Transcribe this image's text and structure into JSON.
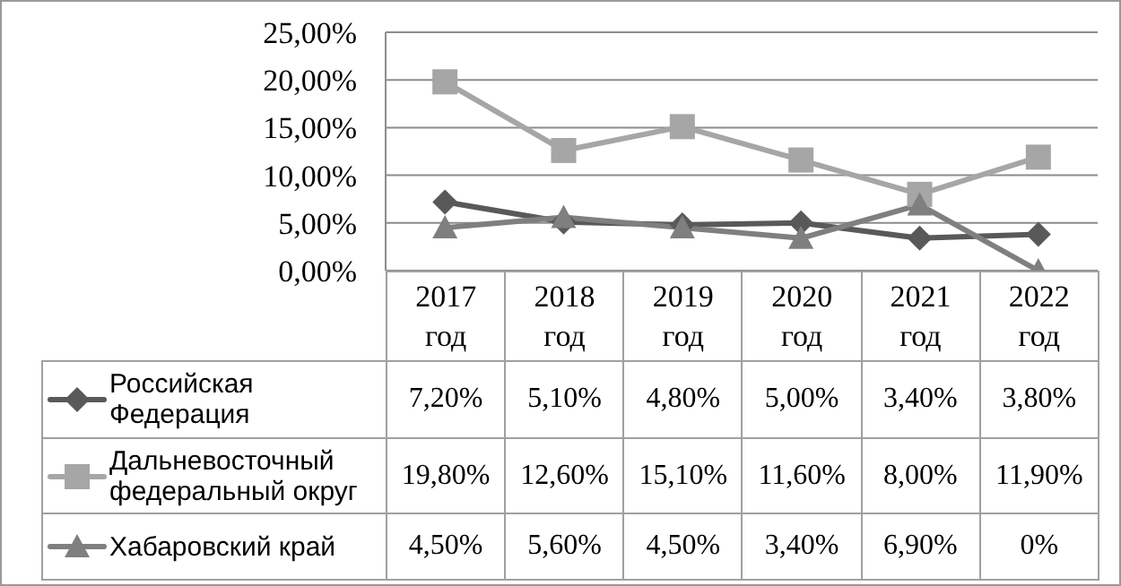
{
  "chart_data": {
    "type": "line",
    "categories": [
      "2017 год",
      "2018 год",
      "2019 год",
      "2020 год",
      "2021 год",
      "2022 год"
    ],
    "ylim": [
      0,
      25
    ],
    "yticks": [
      {
        "value": 0,
        "label": "0,00%"
      },
      {
        "value": 5,
        "label": "5,00%"
      },
      {
        "value": 10,
        "label": "10,00%"
      },
      {
        "value": 15,
        "label": "15,00%"
      },
      {
        "value": 20,
        "label": "20,00%"
      },
      {
        "value": 25,
        "label": "25,00%"
      }
    ],
    "grid": "y",
    "legend": "left",
    "series": [
      {
        "name": "Российская Федерация",
        "color": "#595959",
        "marker": "diamond",
        "values": [
          7.2,
          5.1,
          4.8,
          5.0,
          3.4,
          3.8
        ],
        "value_labels": [
          "7,20%",
          "5,10%",
          "4,80%",
          "5,00%",
          "3,40%",
          "3,80%"
        ]
      },
      {
        "name": "Дальневосточный федеральный округ",
        "color": "#a6a6a6",
        "marker": "square",
        "values": [
          19.8,
          12.6,
          15.1,
          11.6,
          8.0,
          11.9
        ],
        "value_labels": [
          "19,80%",
          "12,60%",
          "15,10%",
          "11,60%",
          "8,00%",
          "11,90%"
        ]
      },
      {
        "name": "Хабаровский край",
        "color": "#7f7f7f",
        "marker": "triangle",
        "values": [
          4.5,
          5.6,
          4.5,
          3.4,
          6.9,
          0
        ],
        "value_labels": [
          "4,50%",
          "5,60%",
          "4,50%",
          "3,40%",
          "6,90%",
          "0%"
        ]
      }
    ]
  }
}
